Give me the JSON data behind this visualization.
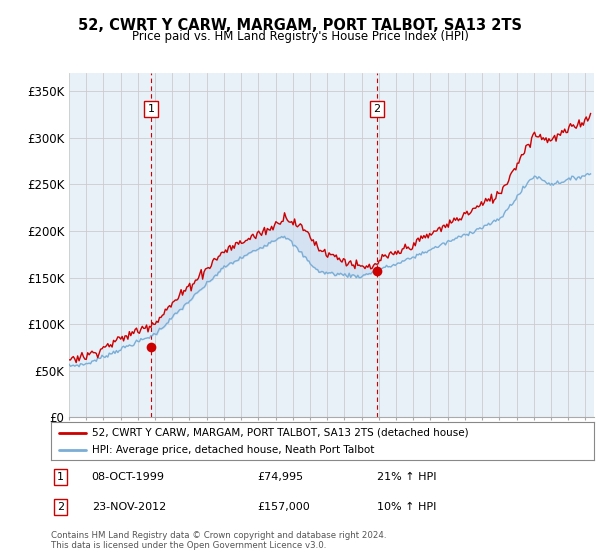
{
  "title": "52, CWRT Y CARW, MARGAM, PORT TALBOT, SA13 2TS",
  "subtitle": "Price paid vs. HM Land Registry's House Price Index (HPI)",
  "ylabel_ticks": [
    "£0",
    "£50K",
    "£100K",
    "£150K",
    "£200K",
    "£250K",
    "£300K",
    "£350K"
  ],
  "ylabel_values": [
    0,
    50000,
    100000,
    150000,
    200000,
    250000,
    300000,
    350000
  ],
  "ylim": [
    0,
    370000
  ],
  "xlim_start": 1995.0,
  "xlim_end": 2025.5,
  "legend_line1": "52, CWRT Y CARW, MARGAM, PORT TALBOT, SA13 2TS (detached house)",
  "legend_line2": "HPI: Average price, detached house, Neath Port Talbot",
  "sale1_label": "1",
  "sale1_date": "08-OCT-1999",
  "sale1_price": "£74,995",
  "sale1_hpi": "21% ↑ HPI",
  "sale1_x": 1999.77,
  "sale1_y": 74995,
  "sale2_label": "2",
  "sale2_date": "23-NOV-2012",
  "sale2_price": "£157,000",
  "sale2_hpi": "10% ↑ HPI",
  "sale2_x": 2012.9,
  "sale2_y": 157000,
  "vline1_x": 1999.77,
  "vline2_x": 2012.9,
  "red_color": "#cc0000",
  "blue_color": "#7aaed6",
  "fill_color": "#ddeeff",
  "footnote": "Contains HM Land Registry data © Crown copyright and database right 2024.\nThis data is licensed under the Open Government Licence v3.0.",
  "background_color": "#ffffff",
  "grid_color": "#cccccc"
}
